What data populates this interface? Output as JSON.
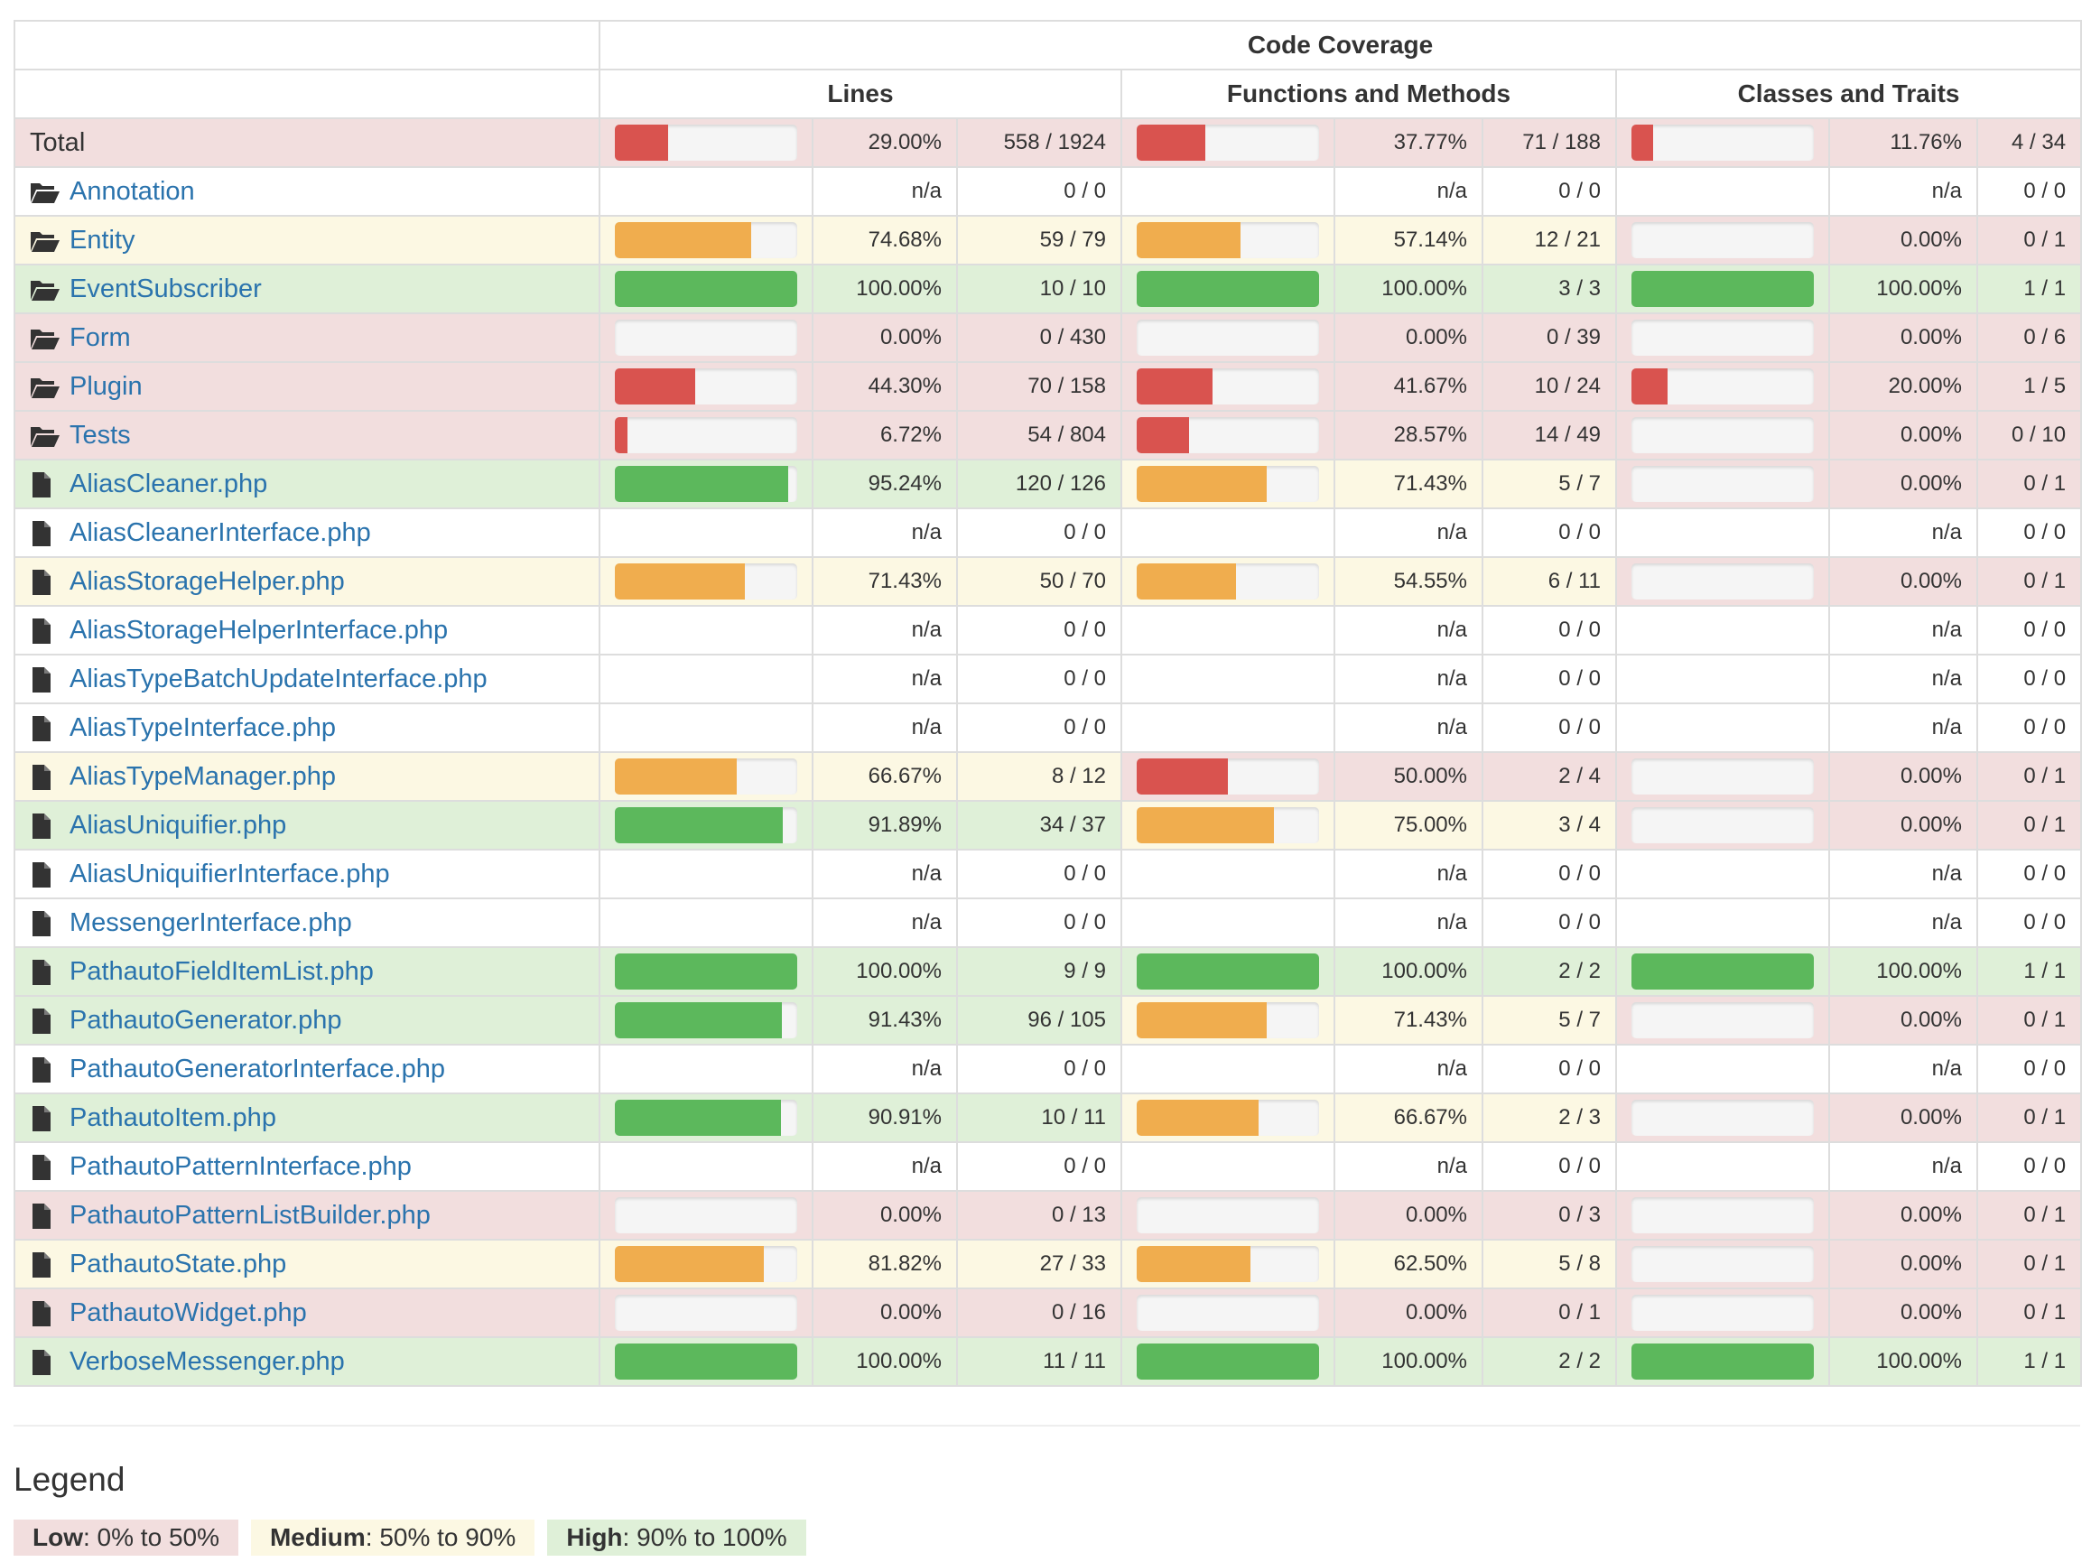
{
  "header": {
    "group_title": "Code Coverage",
    "columns": [
      "Lines",
      "Functions and Methods",
      "Classes and Traits"
    ]
  },
  "colors": {
    "low": "#d9534f",
    "medium": "#f0ad4e",
    "high": "#5cb85c",
    "low_bg": "#f2dede",
    "medium_bg": "#fcf8e3",
    "high_bg": "#dff0d8",
    "link": "#2a73ad"
  },
  "rows": [
    {
      "name": "Total",
      "type": "total",
      "lines": {
        "pct": "29.00%",
        "count": "558 / 1924",
        "level": "low",
        "value": 29.0
      },
      "functions": {
        "pct": "37.77%",
        "count": "71 / 188",
        "level": "low",
        "value": 37.77
      },
      "classes": {
        "pct": "11.76%",
        "count": "4 / 34",
        "level": "low",
        "value": 11.76
      }
    },
    {
      "name": "Annotation",
      "type": "folder",
      "lines": {
        "pct": "n/a",
        "count": "0 / 0",
        "level": "none",
        "value": null
      },
      "functions": {
        "pct": "n/a",
        "count": "0 / 0",
        "level": "none",
        "value": null
      },
      "classes": {
        "pct": "n/a",
        "count": "0 / 0",
        "level": "none",
        "value": null
      }
    },
    {
      "name": "Entity",
      "type": "folder",
      "lines": {
        "pct": "74.68%",
        "count": "59 / 79",
        "level": "medium",
        "value": 74.68
      },
      "functions": {
        "pct": "57.14%",
        "count": "12 / 21",
        "level": "medium",
        "value": 57.14
      },
      "classes": {
        "pct": "0.00%",
        "count": "0 / 1",
        "level": "low",
        "value": 0
      }
    },
    {
      "name": "EventSubscriber",
      "type": "folder",
      "lines": {
        "pct": "100.00%",
        "count": "10 / 10",
        "level": "high",
        "value": 100
      },
      "functions": {
        "pct": "100.00%",
        "count": "3 / 3",
        "level": "high",
        "value": 100
      },
      "classes": {
        "pct": "100.00%",
        "count": "1 / 1",
        "level": "high",
        "value": 100
      }
    },
    {
      "name": "Form",
      "type": "folder",
      "lines": {
        "pct": "0.00%",
        "count": "0 / 430",
        "level": "low",
        "value": 0
      },
      "functions": {
        "pct": "0.00%",
        "count": "0 / 39",
        "level": "low",
        "value": 0
      },
      "classes": {
        "pct": "0.00%",
        "count": "0 / 6",
        "level": "low",
        "value": 0
      }
    },
    {
      "name": "Plugin",
      "type": "folder",
      "lines": {
        "pct": "44.30%",
        "count": "70 / 158",
        "level": "low",
        "value": 44.3
      },
      "functions": {
        "pct": "41.67%",
        "count": "10 / 24",
        "level": "low",
        "value": 41.67
      },
      "classes": {
        "pct": "20.00%",
        "count": "1 / 5",
        "level": "low",
        "value": 20
      }
    },
    {
      "name": "Tests",
      "type": "folder",
      "lines": {
        "pct": "6.72%",
        "count": "54 / 804",
        "level": "low",
        "value": 6.72
      },
      "functions": {
        "pct": "28.57%",
        "count": "14 / 49",
        "level": "low",
        "value": 28.57
      },
      "classes": {
        "pct": "0.00%",
        "count": "0 / 10",
        "level": "low",
        "value": 0
      }
    },
    {
      "name": "AliasCleaner.php",
      "type": "file",
      "lines": {
        "pct": "95.24%",
        "count": "120 / 126",
        "level": "high",
        "value": 95.24
      },
      "functions": {
        "pct": "71.43%",
        "count": "5 / 7",
        "level": "medium",
        "value": 71.43
      },
      "classes": {
        "pct": "0.00%",
        "count": "0 / 1",
        "level": "low",
        "value": 0
      }
    },
    {
      "name": "AliasCleanerInterface.php",
      "type": "file",
      "lines": {
        "pct": "n/a",
        "count": "0 / 0",
        "level": "none",
        "value": null
      },
      "functions": {
        "pct": "n/a",
        "count": "0 / 0",
        "level": "none",
        "value": null
      },
      "classes": {
        "pct": "n/a",
        "count": "0 / 0",
        "level": "none",
        "value": null
      }
    },
    {
      "name": "AliasStorageHelper.php",
      "type": "file",
      "lines": {
        "pct": "71.43%",
        "count": "50 / 70",
        "level": "medium",
        "value": 71.43
      },
      "functions": {
        "pct": "54.55%",
        "count": "6 / 11",
        "level": "medium",
        "value": 54.55
      },
      "classes": {
        "pct": "0.00%",
        "count": "0 / 1",
        "level": "low",
        "value": 0
      }
    },
    {
      "name": "AliasStorageHelperInterface.php",
      "type": "file",
      "lines": {
        "pct": "n/a",
        "count": "0 / 0",
        "level": "none",
        "value": null
      },
      "functions": {
        "pct": "n/a",
        "count": "0 / 0",
        "level": "none",
        "value": null
      },
      "classes": {
        "pct": "n/a",
        "count": "0 / 0",
        "level": "none",
        "value": null
      }
    },
    {
      "name": "AliasTypeBatchUpdateInterface.php",
      "type": "file",
      "lines": {
        "pct": "n/a",
        "count": "0 / 0",
        "level": "none",
        "value": null
      },
      "functions": {
        "pct": "n/a",
        "count": "0 / 0",
        "level": "none",
        "value": null
      },
      "classes": {
        "pct": "n/a",
        "count": "0 / 0",
        "level": "none",
        "value": null
      }
    },
    {
      "name": "AliasTypeInterface.php",
      "type": "file",
      "lines": {
        "pct": "n/a",
        "count": "0 / 0",
        "level": "none",
        "value": null
      },
      "functions": {
        "pct": "n/a",
        "count": "0 / 0",
        "level": "none",
        "value": null
      },
      "classes": {
        "pct": "n/a",
        "count": "0 / 0",
        "level": "none",
        "value": null
      }
    },
    {
      "name": "AliasTypeManager.php",
      "type": "file",
      "lines": {
        "pct": "66.67%",
        "count": "8 / 12",
        "level": "medium",
        "value": 66.67
      },
      "functions": {
        "pct": "50.00%",
        "count": "2 / 4",
        "level": "low",
        "value": 50
      },
      "classes": {
        "pct": "0.00%",
        "count": "0 / 1",
        "level": "low",
        "value": 0
      }
    },
    {
      "name": "AliasUniquifier.php",
      "type": "file",
      "lines": {
        "pct": "91.89%",
        "count": "34 / 37",
        "level": "high",
        "value": 91.89
      },
      "functions": {
        "pct": "75.00%",
        "count": "3 / 4",
        "level": "medium",
        "value": 75
      },
      "classes": {
        "pct": "0.00%",
        "count": "0 / 1",
        "level": "low",
        "value": 0
      }
    },
    {
      "name": "AliasUniquifierInterface.php",
      "type": "file",
      "lines": {
        "pct": "n/a",
        "count": "0 / 0",
        "level": "none",
        "value": null
      },
      "functions": {
        "pct": "n/a",
        "count": "0 / 0",
        "level": "none",
        "value": null
      },
      "classes": {
        "pct": "n/a",
        "count": "0 / 0",
        "level": "none",
        "value": null
      }
    },
    {
      "name": "MessengerInterface.php",
      "type": "file",
      "lines": {
        "pct": "n/a",
        "count": "0 / 0",
        "level": "none",
        "value": null
      },
      "functions": {
        "pct": "n/a",
        "count": "0 / 0",
        "level": "none",
        "value": null
      },
      "classes": {
        "pct": "n/a",
        "count": "0 / 0",
        "level": "none",
        "value": null
      }
    },
    {
      "name": "PathautoFieldItemList.php",
      "type": "file",
      "lines": {
        "pct": "100.00%",
        "count": "9 / 9",
        "level": "high",
        "value": 100
      },
      "functions": {
        "pct": "100.00%",
        "count": "2 / 2",
        "level": "high",
        "value": 100
      },
      "classes": {
        "pct": "100.00%",
        "count": "1 / 1",
        "level": "high",
        "value": 100
      }
    },
    {
      "name": "PathautoGenerator.php",
      "type": "file",
      "lines": {
        "pct": "91.43%",
        "count": "96 / 105",
        "level": "high",
        "value": 91.43
      },
      "functions": {
        "pct": "71.43%",
        "count": "5 / 7",
        "level": "medium",
        "value": 71.43
      },
      "classes": {
        "pct": "0.00%",
        "count": "0 / 1",
        "level": "low",
        "value": 0
      }
    },
    {
      "name": "PathautoGeneratorInterface.php",
      "type": "file",
      "lines": {
        "pct": "n/a",
        "count": "0 / 0",
        "level": "none",
        "value": null
      },
      "functions": {
        "pct": "n/a",
        "count": "0 / 0",
        "level": "none",
        "value": null
      },
      "classes": {
        "pct": "n/a",
        "count": "0 / 0",
        "level": "none",
        "value": null
      }
    },
    {
      "name": "PathautoItem.php",
      "type": "file",
      "lines": {
        "pct": "90.91%",
        "count": "10 / 11",
        "level": "high",
        "value": 90.91
      },
      "functions": {
        "pct": "66.67%",
        "count": "2 / 3",
        "level": "medium",
        "value": 66.67
      },
      "classes": {
        "pct": "0.00%",
        "count": "0 / 1",
        "level": "low",
        "value": 0
      }
    },
    {
      "name": "PathautoPatternInterface.php",
      "type": "file",
      "lines": {
        "pct": "n/a",
        "count": "0 / 0",
        "level": "none",
        "value": null
      },
      "functions": {
        "pct": "n/a",
        "count": "0 / 0",
        "level": "none",
        "value": null
      },
      "classes": {
        "pct": "n/a",
        "count": "0 / 0",
        "level": "none",
        "value": null
      }
    },
    {
      "name": "PathautoPatternListBuilder.php",
      "type": "file",
      "lines": {
        "pct": "0.00%",
        "count": "0 / 13",
        "level": "low",
        "value": 0
      },
      "functions": {
        "pct": "0.00%",
        "count": "0 / 3",
        "level": "low",
        "value": 0
      },
      "classes": {
        "pct": "0.00%",
        "count": "0 / 1",
        "level": "low",
        "value": 0
      }
    },
    {
      "name": "PathautoState.php",
      "type": "file",
      "lines": {
        "pct": "81.82%",
        "count": "27 / 33",
        "level": "medium",
        "value": 81.82
      },
      "functions": {
        "pct": "62.50%",
        "count": "5 / 8",
        "level": "medium",
        "value": 62.5
      },
      "classes": {
        "pct": "0.00%",
        "count": "0 / 1",
        "level": "low",
        "value": 0
      }
    },
    {
      "name": "PathautoWidget.php",
      "type": "file",
      "lines": {
        "pct": "0.00%",
        "count": "0 / 16",
        "level": "low",
        "value": 0
      },
      "functions": {
        "pct": "0.00%",
        "count": "0 / 1",
        "level": "low",
        "value": 0
      },
      "classes": {
        "pct": "0.00%",
        "count": "0 / 1",
        "level": "low",
        "value": 0
      }
    },
    {
      "name": "VerboseMessenger.php",
      "type": "file",
      "lines": {
        "pct": "100.00%",
        "count": "11 / 11",
        "level": "high",
        "value": 100
      },
      "functions": {
        "pct": "100.00%",
        "count": "2 / 2",
        "level": "high",
        "value": 100
      },
      "classes": {
        "pct": "100.00%",
        "count": "1 / 1",
        "level": "high",
        "value": 100
      }
    }
  ],
  "legend": {
    "title": "Legend",
    "items": [
      {
        "label": "Low",
        "range": ": 0% to 50%"
      },
      {
        "label": "Medium",
        "range": ": 50% to 90%"
      },
      {
        "label": "High",
        "range": ": 90% to 100%"
      }
    ]
  }
}
